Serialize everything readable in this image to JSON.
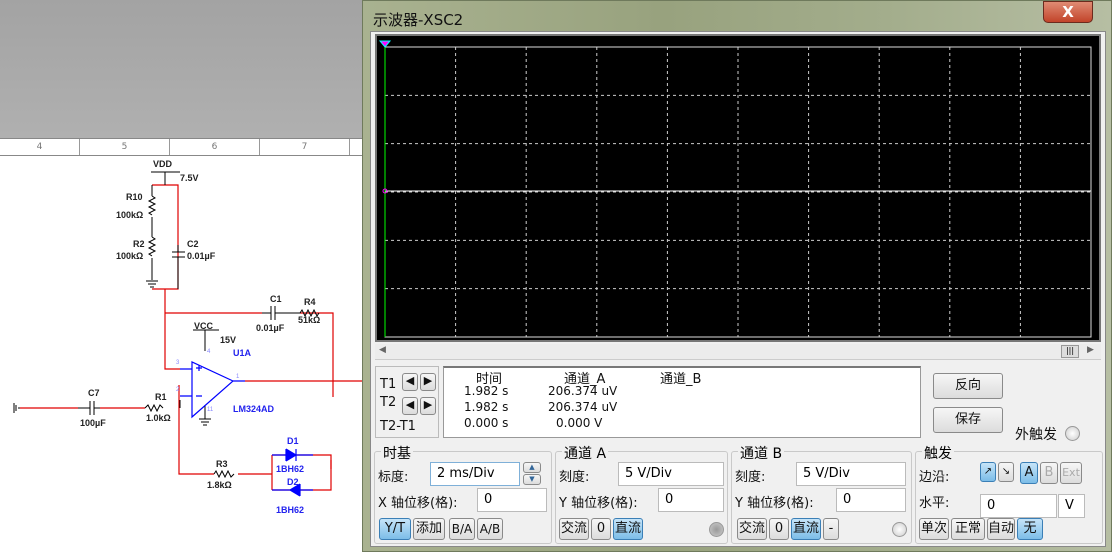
{
  "schematic": {
    "ruler": [
      "4",
      "5",
      "6",
      "7"
    ],
    "labels": {
      "vdd": "VDD",
      "vdd_v": "7.5V",
      "r10": "R10",
      "r10_v": "100kΩ",
      "r2": "R2",
      "r2_v": "100kΩ",
      "c2": "C2",
      "c2_v": "0.01µF",
      "c1": "C1",
      "c1_v": "0.01µF",
      "r4": "R4",
      "r4_v": "51kΩ",
      "vcc": "VCC",
      "vcc_v": "15V",
      "u1a": "U1A",
      "part": "LM324AD",
      "c7": "C7",
      "c7_v": "100µF",
      "r1": "R1",
      "r1_v": "1.0kΩ",
      "r3": "R3",
      "r3_v": "1.8kΩ",
      "d1": "D1",
      "d1_v": "1BH62",
      "d2": "D2",
      "d2_v": "1BH62",
      "pin3": "3",
      "pin2": "2",
      "pin4": "4",
      "pin11": "11",
      "pin1": "1"
    },
    "colors": {
      "wire": "#e00000",
      "component": "#000000",
      "opamp": "#0000ff"
    }
  },
  "scope": {
    "title": "示波器-XSC2",
    "close_label": "X",
    "trace_color": "#ffffff",
    "cursor_color": "#ff00ff",
    "readout": {
      "headers": [
        "时间",
        "通道_A",
        "通道_B"
      ],
      "rows": [
        {
          "label": "T1",
          "time": "1.982 s",
          "a": "206.374 uV",
          "b": ""
        },
        {
          "label": "T2",
          "time": "1.982 s",
          "a": "206.374 uV",
          "b": ""
        },
        {
          "label": "T2-T1",
          "time": "0.000 s",
          "a": "0.000 V",
          "b": ""
        }
      ]
    },
    "reverse_label": "反向",
    "save_label": "保存",
    "ext_trigger_label": "外触发",
    "timebase": {
      "title": "时基",
      "scale_label": "标度:",
      "scale": "2 ms/Div",
      "xpos_label": "X 轴位移(格):",
      "xpos": "0",
      "buttons": [
        "Y/T",
        "添加",
        "B/A",
        "A/B"
      ]
    },
    "channel_a": {
      "title": "通道 A",
      "scale_label": "刻度:",
      "scale": "5  V/Div",
      "ypos_label": "Y 轴位移(格):",
      "ypos": "0",
      "buttons": [
        "交流",
        "0",
        "直流"
      ]
    },
    "channel_b": {
      "title": "通道 B",
      "scale_label": "刻度:",
      "scale": "5  V/Div",
      "ypos_label": "Y 轴位移(格):",
      "ypos": "0",
      "buttons": [
        "交流",
        "0",
        "直流",
        "-"
      ]
    },
    "trigger": {
      "title": "触发",
      "edge_label": "边沿:",
      "edge_buttons": [
        "↗",
        "↘",
        "A",
        "B",
        "Ext"
      ],
      "level_label": "水平:",
      "level": "0",
      "level_unit": "V",
      "mode_buttons": [
        "单次",
        "正常",
        "自动",
        "无"
      ]
    }
  }
}
